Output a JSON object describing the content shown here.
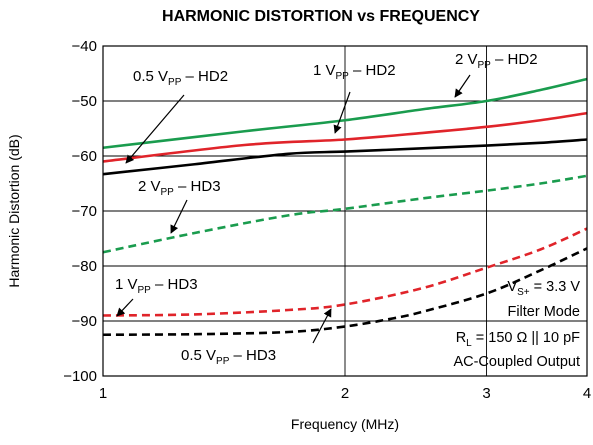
{
  "chart_data": {
    "type": "line",
    "title": "HARMONIC DISTORTION vs FREQUENCY",
    "xlabel": "Frequency (MHz)",
    "ylabel": "Harmonic Distortion (dB)",
    "xscale": "log",
    "xlim": [
      1,
      4
    ],
    "ylim": [
      -100,
      -40
    ],
    "xticks": [
      1,
      2,
      3,
      4
    ],
    "yticks": [
      -40,
      -50,
      -60,
      -70,
      -80,
      -90,
      -100
    ],
    "grid": true,
    "series": [
      {
        "name": "2 VPP – HD2",
        "color": "#1a9c4e",
        "style": "solid",
        "x": [
          1,
          1.5,
          2,
          2.5,
          3,
          3.5,
          4
        ],
        "y": [
          -58.5,
          -55.5,
          -53.5,
          -51.5,
          -50,
          -48,
          -46
        ]
      },
      {
        "name": "1 VPP – HD2",
        "color": "#e0242a",
        "style": "solid",
        "x": [
          1,
          1.5,
          2,
          2.5,
          3,
          3.5,
          4
        ],
        "y": [
          -61,
          -58,
          -57,
          -55.8,
          -54.7,
          -53.5,
          -52.2
        ]
      },
      {
        "name": "0.5 VPP – HD2",
        "color": "#000000",
        "style": "solid",
        "x": [
          1,
          1.3,
          1.7,
          2,
          2.5,
          3,
          3.5,
          4
        ],
        "y": [
          -63.3,
          -61.5,
          -59.6,
          -59.2,
          -58.6,
          -58.1,
          -57.6,
          -57
        ]
      },
      {
        "name": "2 VPP – HD3",
        "color": "#1a9c4e",
        "style": "dashed",
        "x": [
          1,
          1.3,
          1.7,
          2,
          2.5,
          3,
          3.5,
          4
        ],
        "y": [
          -77.5,
          -74,
          -70.8,
          -69.6,
          -67.7,
          -66.3,
          -65,
          -63.6
        ]
      },
      {
        "name": "1 VPP – HD3",
        "color": "#e0242a",
        "style": "dashed",
        "x": [
          1,
          1.3,
          1.7,
          2,
          2.5,
          3,
          3.5,
          4
        ],
        "y": [
          -89,
          -88.8,
          -88,
          -87,
          -84,
          -80.3,
          -77,
          -73.2
        ]
      },
      {
        "name": "0.5 VPP – HD3",
        "color": "#000000",
        "style": "dashed",
        "x": [
          1,
          1.3,
          1.7,
          2,
          2.3,
          2.5,
          3,
          3.5,
          4
        ],
        "y": [
          -92.5,
          -92.4,
          -92,
          -91,
          -89.5,
          -88.3,
          -85,
          -80.8,
          -76.8
        ]
      }
    ],
    "labels": [
      {
        "base": "0.5 V",
        "sub": "PP",
        "suffix": " – HD2"
      },
      {
        "base": "1 V",
        "sub": "PP",
        "suffix": " – HD2"
      },
      {
        "base": "2 V",
        "sub": "PP",
        "suffix": " – HD2"
      },
      {
        "base": "2 V",
        "sub": "PP",
        "suffix": " – HD3"
      },
      {
        "base": "1 V",
        "sub": "PP",
        "suffix": " – HD3"
      },
      {
        "base": "0.5 V",
        "sub": "PP",
        "suffix": " – HD3"
      }
    ],
    "conditions": [
      {
        "base": "V",
        "sub": "S+",
        "suffix": " = 3.3 V"
      },
      {
        "base": "Filter Mode",
        "sub": "",
        "suffix": ""
      },
      {
        "base": "R",
        "sub": "L",
        "suffix": " = 150 Ω || 10 pF"
      },
      {
        "base": "AC-Coupled Output",
        "sub": "",
        "suffix": ""
      }
    ]
  }
}
